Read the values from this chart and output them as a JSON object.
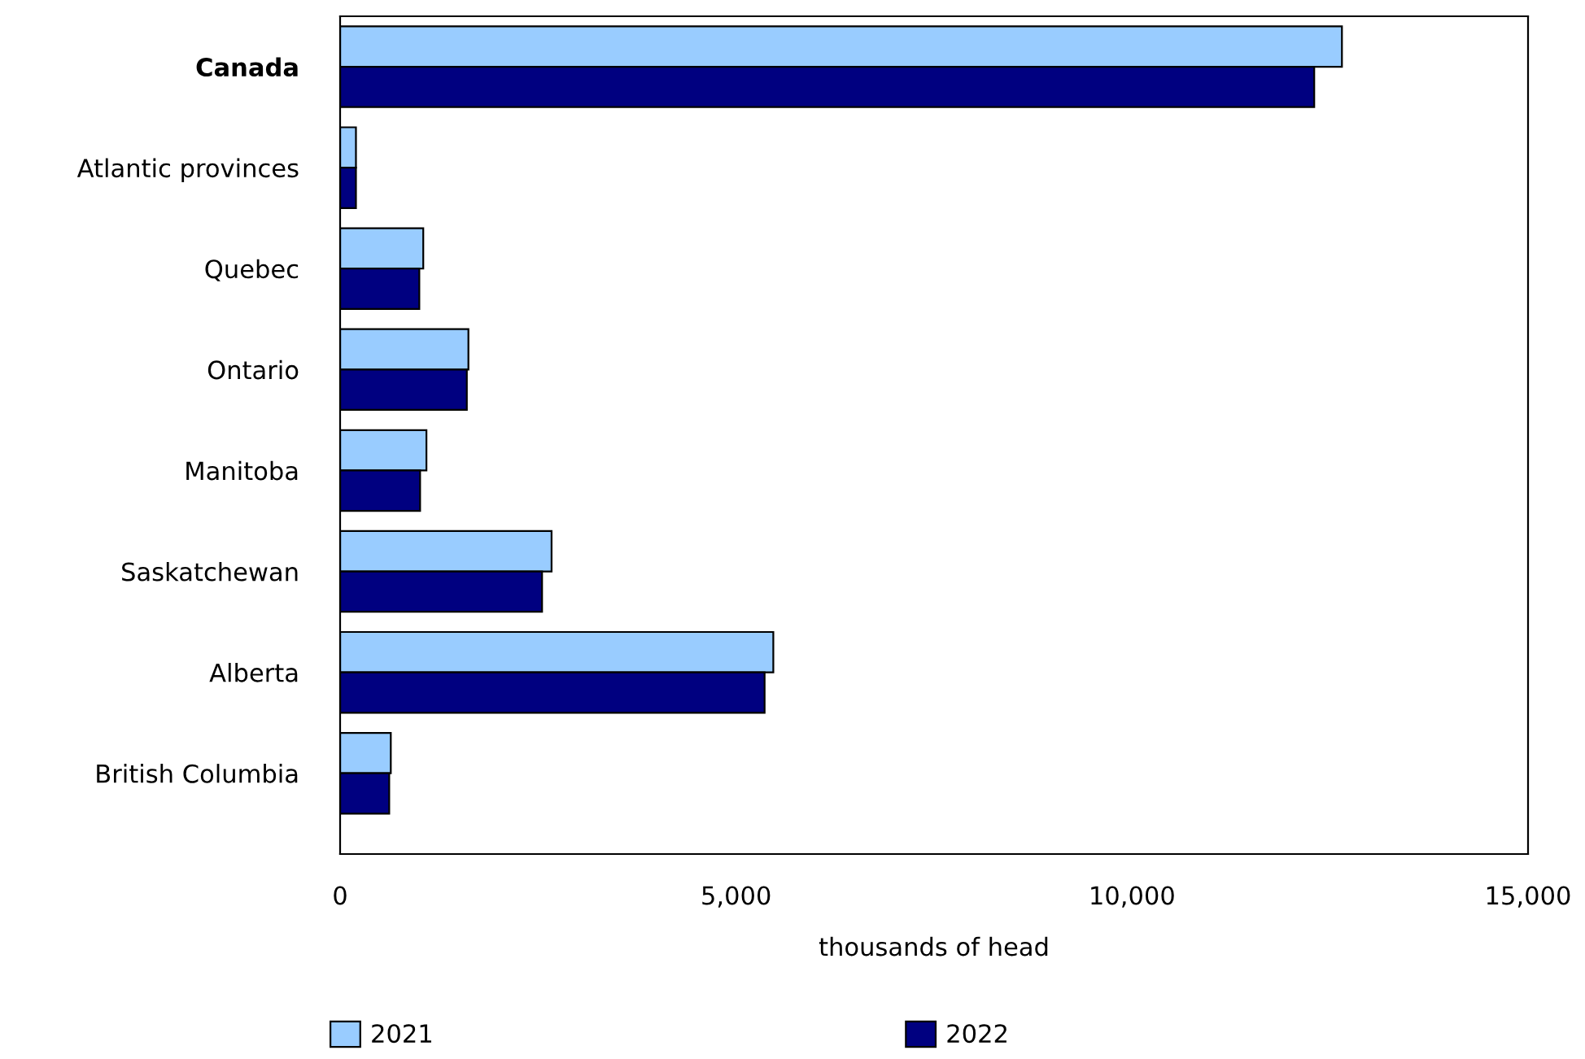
{
  "chart_data": {
    "type": "bar",
    "orientation": "horizontal",
    "xlabel": "thousands of head",
    "categories": [
      "Canada",
      "Atlantic provinces",
      "Quebec",
      "Ontario",
      "Manitoba",
      "Saskatchewan",
      "Alberta",
      "British Columbia"
    ],
    "series": [
      {
        "name": "2021",
        "color": "#99ccff",
        "values": [
          12650,
          200,
          1050,
          1620,
          1090,
          2670,
          5470,
          640
        ]
      },
      {
        "name": "2022",
        "color": "#000080",
        "values": [
          12300,
          200,
          1000,
          1600,
          1010,
          2550,
          5360,
          620
        ]
      }
    ],
    "xlim": [
      0,
      15000
    ],
    "xticks": [
      0,
      {
        "value": 5000,
        "label": "5,000"
      },
      {
        "value": 10000,
        "label": "10,000"
      },
      {
        "value": 15000,
        "label": "15,000"
      }
    ],
    "grid": false,
    "legend": "bottom"
  }
}
